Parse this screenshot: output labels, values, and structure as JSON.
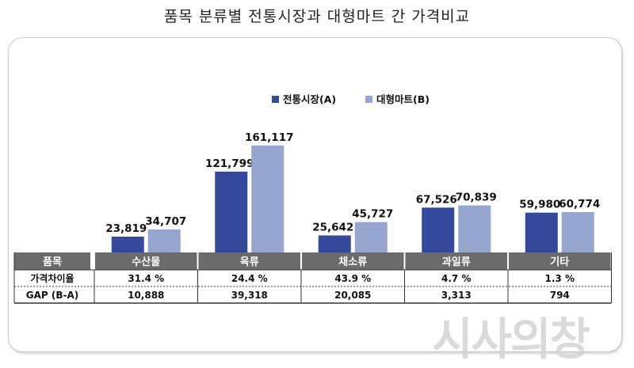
{
  "page_title": "품목 분류별 전통시장과 대형마트 간 가격비교",
  "watermark": "시사의창",
  "chart_data": {
    "type": "bar",
    "categories": [
      "수산물",
      "육류",
      "채소류",
      "과일류",
      "기타"
    ],
    "series": [
      {
        "name": "전통시장(A)",
        "values": [
          23819,
          121799,
          25642,
          67526,
          59980
        ],
        "color": "#34489c"
      },
      {
        "name": "대형마트(B)",
        "values": [
          34707,
          161117,
          45727,
          70839,
          60774
        ],
        "color": "#96a6cf"
      }
    ],
    "value_labels": [
      [
        "23,819",
        "121,799",
        "25,642",
        "67,526",
        "59,980"
      ],
      [
        "34,707",
        "161,117",
        "45,727",
        "70,839",
        "60,774"
      ]
    ],
    "ylim": [
      0,
      180000
    ],
    "legend_position": "top-center",
    "grid": false,
    "table": {
      "header_label": "품목",
      "rows": [
        {
          "label": "가격차이율",
          "values": [
            "31.4 %",
            "24.4 %",
            "43.9 %",
            "4.7 %",
            "1.3 %"
          ]
        },
        {
          "label": "GAP (B-A)",
          "values": [
            "10,888",
            "39,318",
            "20,085",
            "3,313",
            "794"
          ]
        }
      ],
      "header_fill": "#6b6b6b",
      "header_text_color": "#ffffff"
    }
  }
}
